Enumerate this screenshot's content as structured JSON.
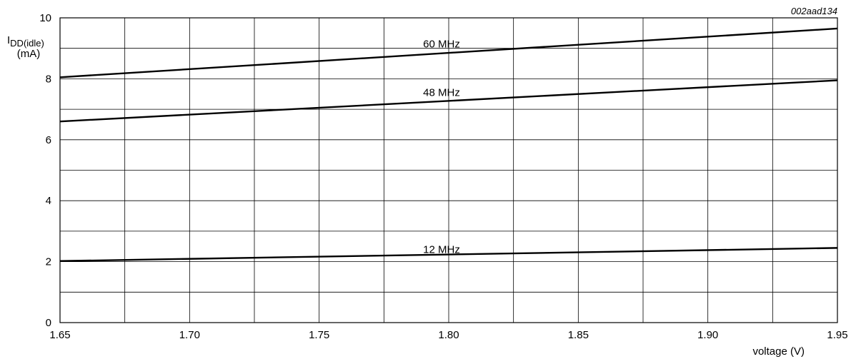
{
  "figure_id": "002aad134",
  "chart_data": {
    "type": "line",
    "title": "",
    "ylabel_main": "I",
    "ylabel_sub": "DD(idle)",
    "ylabel_unit": "(mA)",
    "xlabel": "voltage (V)",
    "xlim": [
      1.65,
      1.95
    ],
    "ylim": [
      0,
      10
    ],
    "x_ticks": [
      1.65,
      1.7,
      1.75,
      1.8,
      1.85,
      1.9,
      1.95
    ],
    "x_tick_labels": [
      "1.65",
      "1.70",
      "1.75",
      "1.80",
      "1.85",
      "1.90",
      "1.95"
    ],
    "x_grid_step": 0.025,
    "y_ticks": [
      0,
      2,
      4,
      6,
      8,
      10
    ],
    "y_tick_labels": [
      "0",
      "2",
      "4",
      "6",
      "8",
      "10"
    ],
    "y_grid_step": 1,
    "grid": true,
    "line_color": "#000000",
    "series": [
      {
        "name": "60 MHz",
        "x": [
          1.65,
          1.95
        ],
        "y": [
          8.05,
          9.65
        ],
        "label_x": 1.8,
        "label_y": 9.15
      },
      {
        "name": "48 MHz",
        "x": [
          1.65,
          1.95
        ],
        "y": [
          6.6,
          7.95
        ],
        "label_x": 1.8,
        "label_y": 7.55
      },
      {
        "name": "12 MHz",
        "x": [
          1.65,
          1.95
        ],
        "y": [
          2.02,
          2.45
        ],
        "label_x": 1.8,
        "label_y": 2.4
      }
    ]
  }
}
